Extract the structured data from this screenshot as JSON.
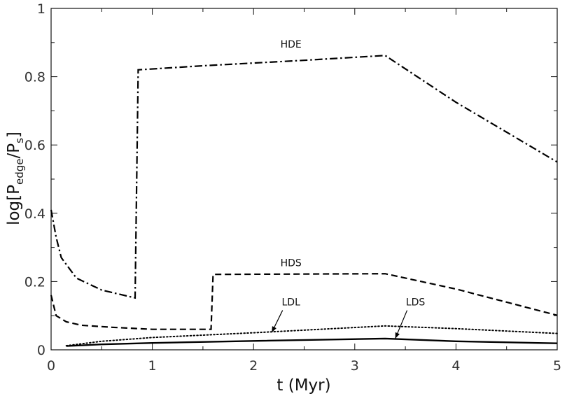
{
  "chart_data": {
    "type": "line",
    "xlabel": "t (Myr)",
    "ylabel": {
      "prefix": "log[P",
      "sub1": "edge",
      "middle": "/P",
      "sub2": "s",
      "suffix": "]"
    },
    "xlim": [
      0,
      5
    ],
    "ylim": [
      0,
      1
    ],
    "x_ticks": [
      0,
      1,
      2,
      3,
      4,
      5
    ],
    "y_ticks": [
      0,
      0.2,
      0.4,
      0.6,
      0.8,
      1
    ],
    "y_tick_labels": [
      "0",
      "0.2",
      "0.4",
      "0.6",
      "0.8",
      "1"
    ],
    "grid": false,
    "series": [
      {
        "name": "HDE",
        "style": "dashdot",
        "points": [
          [
            0.0,
            0.41
          ],
          [
            0.05,
            0.33
          ],
          [
            0.1,
            0.27
          ],
          [
            0.25,
            0.21
          ],
          [
            0.5,
            0.175
          ],
          [
            0.83,
            0.152
          ],
          [
            0.86,
            0.82
          ],
          [
            1.5,
            0.832
          ],
          [
            2.5,
            0.848
          ],
          [
            3.3,
            0.862
          ],
          [
            4.0,
            0.725
          ],
          [
            5.0,
            0.55
          ]
        ]
      },
      {
        "name": "HDS",
        "style": "dashed",
        "points": [
          [
            0.0,
            0.16
          ],
          [
            0.05,
            0.1
          ],
          [
            0.15,
            0.082
          ],
          [
            0.3,
            0.072
          ],
          [
            0.6,
            0.066
          ],
          [
            1.0,
            0.06
          ],
          [
            1.58,
            0.06
          ],
          [
            1.6,
            0.221
          ],
          [
            3.3,
            0.223
          ],
          [
            4.0,
            0.178
          ],
          [
            5.0,
            0.101
          ]
        ]
      },
      {
        "name": "LDL",
        "style": "dotted",
        "points": [
          [
            0.15,
            0.012
          ],
          [
            0.5,
            0.025
          ],
          [
            1.0,
            0.036
          ],
          [
            2.0,
            0.05
          ],
          [
            3.3,
            0.07
          ],
          [
            4.0,
            0.062
          ],
          [
            5.0,
            0.048
          ]
        ]
      },
      {
        "name": "LDS",
        "style": "solid",
        "points": [
          [
            0.15,
            0.011
          ],
          [
            0.5,
            0.016
          ],
          [
            1.0,
            0.02
          ],
          [
            2.0,
            0.026
          ],
          [
            3.3,
            0.033
          ],
          [
            4.0,
            0.025
          ],
          [
            5.0,
            0.019
          ]
        ]
      }
    ],
    "annotations": [
      {
        "text": "HDE",
        "series": "HDE",
        "x": 2.37,
        "y": 0.885,
        "arrow": false
      },
      {
        "text": "HDS",
        "series": "HDS",
        "x": 2.37,
        "y": 0.245,
        "arrow": false
      },
      {
        "text": "LDL",
        "series": "LDL",
        "x": 2.37,
        "y": 0.13,
        "arrow": true,
        "arrow_to": [
          2.18,
          0.051
        ]
      },
      {
        "text": "LDS",
        "series": "LDS",
        "x": 3.6,
        "y": 0.13,
        "arrow": true,
        "arrow_to": [
          3.4,
          0.033
        ]
      }
    ]
  }
}
